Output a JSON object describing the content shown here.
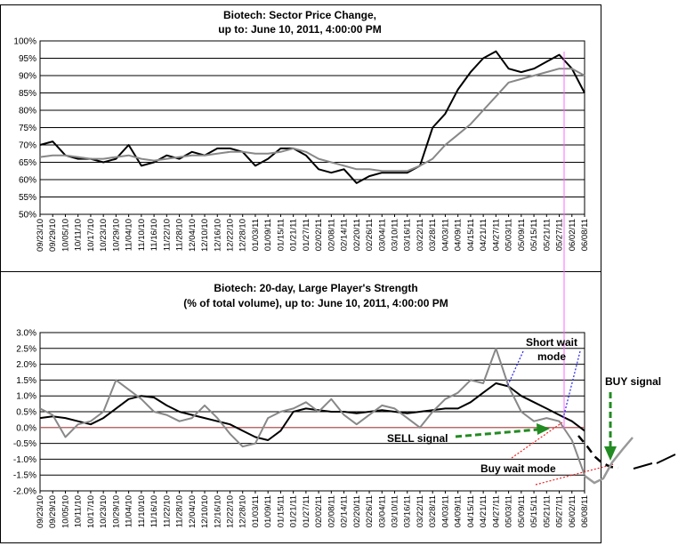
{
  "chart_data": [
    {
      "type": "line",
      "title": "Biotech: Sector Price Change,",
      "subtitle": "up to: June 10, 2011, 4:00:00 PM",
      "ylim": [
        50,
        100
      ],
      "yticks": [
        "100%",
        "95%",
        "90%",
        "85%",
        "80%",
        "75%",
        "70%",
        "65%",
        "60%",
        "55%",
        "50%"
      ],
      "ytick_values": [
        100,
        95,
        90,
        85,
        80,
        75,
        70,
        65,
        60,
        55,
        50
      ],
      "x_dates": [
        "09/23/10",
        "09/29/10",
        "10/05/10",
        "10/11/10",
        "10/17/10",
        "10/23/10",
        "10/29/10",
        "11/04/10",
        "11/10/10",
        "11/16/10",
        "11/22/10",
        "11/28/10",
        "12/04/10",
        "12/10/10",
        "12/16/10",
        "12/22/10",
        "12/28/10",
        "01/03/11",
        "01/09/11",
        "01/15/11",
        "01/21/11",
        "01/27/11",
        "02/02/11",
        "02/08/11",
        "02/14/11",
        "02/20/11",
        "02/26/11",
        "03/04/11",
        "03/10/11",
        "03/16/11",
        "03/22/11",
        "03/28/11",
        "04/03/11",
        "04/09/11",
        "04/15/11",
        "04/21/11",
        "04/27/11",
        "05/03/11",
        "05/09/11",
        "05/15/11",
        "05/21/11",
        "05/27/11",
        "06/02/11",
        "06/08/11"
      ],
      "xticks": [
        "09/23/10",
        "09/29/10",
        "10/05/10",
        "10/11/10",
        "10/17/10",
        "10/23/10",
        "10/29/10",
        "11/04/10",
        "11/10/10",
        "11/16/10",
        "11/22/10",
        "11/28/10",
        "12/04/10",
        "12/10/10",
        "12/16/10",
        "12/22/10",
        "12/28/10",
        "01/03/11",
        "01/09/11",
        "01/15/11",
        "01/21/11",
        "01/27/11",
        "02/02/11",
        "02/08/11",
        "02/14/11",
        "02/20/11",
        "02/26/11",
        "03/04/11",
        "03/10/11",
        "03/16/11",
        "03/22/11",
        "03/28/11",
        "04/03/11",
        "04/09/11",
        "04/15/11",
        "04/21/11",
        "04/27/11",
        "05/03/11",
        "05/09/11",
        "05/15/11",
        "05/21/11",
        "05/27/11",
        "06/02/11",
        "06/08/11"
      ],
      "grid": true,
      "series": [
        {
          "color": "#000000",
          "values": [
            70,
            71,
            67,
            66,
            66,
            65,
            66,
            70,
            64,
            65,
            67,
            66,
            68,
            67,
            69,
            69,
            68,
            64,
            66,
            69,
            69,
            67,
            63,
            62,
            63,
            59,
            61,
            62,
            62,
            62,
            64,
            75,
            79,
            86,
            91,
            95,
            97,
            92,
            91,
            92,
            94,
            96,
            92,
            85
          ]
        },
        {
          "color": "#888888",
          "values": [
            66.5,
            67,
            67,
            66.5,
            66,
            66,
            66.5,
            67,
            66,
            65.5,
            66,
            66.5,
            67,
            67,
            67.5,
            68,
            68,
            67.5,
            67.5,
            68,
            69,
            68,
            66,
            65,
            64,
            63,
            63,
            62.5,
            62.5,
            62.5,
            64,
            66,
            70,
            73,
            76,
            80,
            84,
            88,
            89,
            90,
            91,
            92,
            92,
            90
          ]
        }
      ],
      "annotation_line_date": "06/01/11",
      "annotation_line_color": "#ff66ff"
    },
    {
      "type": "line",
      "title": "Biotech: 20-day, Large Player's Strength",
      "subtitle": "(% of total volume), up to: June 10, 2011, 4:00:00 PM",
      "ylim": [
        -2.0,
        3.0
      ],
      "yticks": [
        "3.0%",
        "2.5%",
        "2.0%",
        "1.5%",
        "1.0%",
        "0.5%",
        "0.0%",
        "-0.5%",
        "-1.0%",
        "-1.5%",
        "-2.0%"
      ],
      "ytick_values": [
        3.0,
        2.5,
        2.0,
        1.5,
        1.0,
        0.5,
        0.0,
        -0.5,
        -1.0,
        -1.5,
        -2.0
      ],
      "xticks": [
        "09/23/10",
        "09/29/10",
        "10/05/10",
        "10/11/10",
        "10/17/10",
        "10/23/10",
        "10/29/10",
        "11/04/10",
        "11/10/10",
        "11/16/10",
        "11/22/10",
        "11/28/10",
        "12/04/10",
        "12/10/10",
        "12/16/10",
        "12/22/10",
        "12/28/10",
        "01/03/11",
        "01/09/11",
        "01/15/11",
        "01/21/11",
        "01/27/11",
        "02/02/11",
        "02/08/11",
        "02/14/11",
        "02/20/11",
        "02/26/11",
        "03/04/11",
        "03/10/11",
        "03/16/11",
        "03/22/11",
        "03/28/11",
        "04/03/11",
        "04/09/11",
        "04/15/11",
        "04/21/11",
        "04/27/11",
        "05/03/11",
        "05/09/11",
        "05/15/11",
        "05/21/11",
        "05/27/11",
        "06/02/11",
        "06/08/11"
      ],
      "grid": true,
      "zero_line_color": "#cc6666",
      "series": [
        {
          "color": "#000000",
          "values": [
            0.3,
            0.35,
            0.3,
            0.2,
            0.1,
            0.3,
            0.6,
            0.9,
            1.0,
            0.95,
            0.7,
            0.5,
            0.4,
            0.3,
            0.2,
            0.1,
            -0.1,
            -0.3,
            -0.4,
            -0.1,
            0.5,
            0.6,
            0.55,
            0.5,
            0.5,
            0.45,
            0.5,
            0.55,
            0.5,
            0.45,
            0.5,
            0.55,
            0.6,
            0.6,
            0.8,
            1.1,
            1.4,
            1.3,
            1.0,
            0.8,
            0.6,
            0.4,
            0.2,
            -0.1
          ]
        },
        {
          "color": "#888888",
          "values": [
            0.6,
            0.4,
            -0.3,
            0.1,
            0.2,
            0.5,
            1.5,
            1.2,
            0.9,
            0.5,
            0.4,
            0.2,
            0.3,
            0.7,
            0.3,
            -0.2,
            -0.6,
            -0.5,
            0.3,
            0.5,
            0.6,
            0.8,
            0.5,
            0.9,
            0.4,
            0.1,
            0.4,
            0.7,
            0.6,
            0.3,
            0.0,
            0.5,
            0.9,
            1.1,
            1.5,
            1.4,
            2.5,
            1.3,
            0.5,
            0.2,
            0.3,
            0.2,
            -0.4,
            -1.5
          ]
        }
      ],
      "annotations": {
        "short_wait_1": "Short wait",
        "short_wait_2": "mode",
        "sell": "SELL signal",
        "buy_wait": "Buy wait mode",
        "buy": "BUY signal"
      }
    }
  ],
  "colors": {
    "pink_marker": "#ff66ff",
    "green_arrow": "#228b22",
    "blue_dotted": "#2222ee",
    "red_dotted": "#ee2222"
  }
}
